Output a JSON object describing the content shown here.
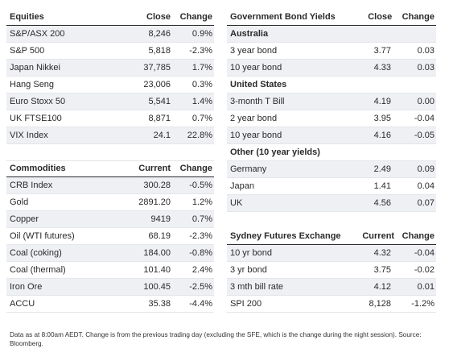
{
  "equities": {
    "header": [
      "Equities",
      "Close",
      "Change"
    ],
    "rows": [
      [
        "S&P/ASX 200",
        "8,246",
        "0.9%"
      ],
      [
        "S&P 500",
        "5,818",
        "-2.3%"
      ],
      [
        "Japan Nikkei",
        "37,785",
        "1.7%"
      ],
      [
        "Hang Seng",
        "23,006",
        "0.3%"
      ],
      [
        "Euro Stoxx 50",
        "5,541",
        "1.4%"
      ],
      [
        "UK FTSE100",
        "8,871",
        "0.7%"
      ],
      [
        "VIX Index",
        "24.1",
        "22.8%"
      ]
    ]
  },
  "commodities": {
    "header": [
      "Commodities",
      "Current",
      "Change"
    ],
    "rows": [
      [
        "CRB Index",
        "300.28",
        "-0.5%"
      ],
      [
        "Gold",
        "2891.20",
        "1.2%"
      ],
      [
        "Copper",
        "9419",
        "0.7%"
      ],
      [
        "Oil (WTI futures)",
        "68.19",
        "-2.3%"
      ],
      [
        "Coal (coking)",
        "184.00",
        "-0.8%"
      ],
      [
        "Coal (thermal)",
        "101.40",
        "2.4%"
      ],
      [
        "Iron Ore",
        "100.45",
        "-2.5%"
      ],
      [
        "ACCU",
        "35.38",
        "-4.4%"
      ]
    ]
  },
  "bonds": {
    "header": [
      "Government Bond Yields",
      "Close",
      "Change"
    ],
    "rows": [
      {
        "type": "section",
        "label": "Australia"
      },
      {
        "type": "data",
        "cells": [
          "3 year bond",
          "3.77",
          "0.03"
        ]
      },
      {
        "type": "data",
        "cells": [
          "10 year bond",
          "4.33",
          "0.03"
        ]
      },
      {
        "type": "section",
        "label": "United States"
      },
      {
        "type": "data",
        "cells": [
          "3-month T Bill",
          "4.19",
          "0.00"
        ]
      },
      {
        "type": "data",
        "cells": [
          "2 year bond",
          "3.95",
          "-0.04"
        ]
      },
      {
        "type": "data",
        "cells": [
          "10 year bond",
          "4.16",
          "-0.05"
        ]
      },
      {
        "type": "section",
        "label": "Other (10 year yields)"
      },
      {
        "type": "data",
        "cells": [
          "Germany",
          "2.49",
          "0.09"
        ]
      },
      {
        "type": "data",
        "cells": [
          "Japan",
          "1.41",
          "0.04"
        ]
      },
      {
        "type": "data",
        "cells": [
          "UK",
          "4.56",
          "0.07"
        ]
      }
    ]
  },
  "sfe": {
    "header": [
      "Sydney Futures Exchange",
      "Current",
      "Change"
    ],
    "rows": [
      [
        "10 yr bond",
        "4.32",
        "-0.04"
      ],
      [
        "3 yr bond",
        "3.75",
        "-0.02"
      ],
      [
        "3 mth bill rate",
        "4.12",
        "0.01"
      ],
      [
        "SPI 200",
        "8,128",
        "-1.2%"
      ]
    ]
  },
  "footnote": "Data as at 8:00am AEDT. Change is from the previous trading day (excluding the SFE, which is the change during the night session). Source: Bloomberg.",
  "colors": {
    "stripe": "#eef0f4",
    "rule": "#2a2a2a",
    "text": "#2a2a2a"
  }
}
